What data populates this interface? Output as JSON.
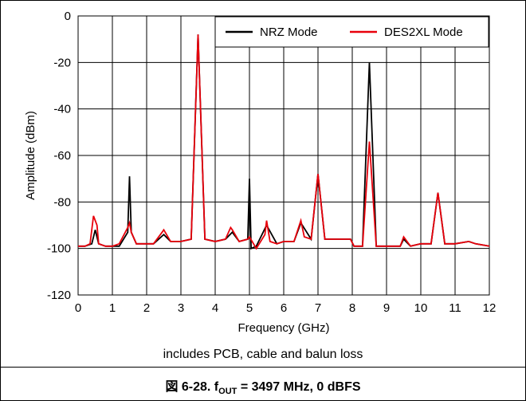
{
  "figure": {
    "note": "includes PCB, cable and balun loss",
    "caption": {
      "prefix": "図 6-28. f",
      "subscript": "OUT",
      "suffix": " = 3497 MHz, 0 dBFS"
    }
  },
  "chart_data": {
    "type": "line",
    "title": "",
    "xlabel": "Frequency (GHz)",
    "ylabel": "Amplitude (dBm)",
    "xlim": [
      0,
      12
    ],
    "ylim": [
      -120,
      0
    ],
    "xticks": [
      0,
      1,
      2,
      3,
      4,
      5,
      6,
      7,
      8,
      9,
      10,
      11,
      12
    ],
    "yticks": [
      0,
      -20,
      -40,
      -60,
      -80,
      -100,
      -120
    ],
    "grid": true,
    "legend_position": "top-right",
    "series": [
      {
        "name": "NRZ Mode",
        "color": "#000000",
        "x": [
          0.0,
          0.2,
          0.4,
          0.5,
          0.6,
          0.8,
          1.0,
          1.2,
          1.45,
          1.5,
          1.55,
          1.7,
          2.0,
          2.2,
          2.5,
          2.7,
          3.0,
          3.3,
          3.5,
          3.7,
          4.0,
          4.3,
          4.5,
          4.7,
          4.95,
          5.0,
          5.05,
          5.2,
          5.5,
          5.8,
          6.0,
          6.3,
          6.5,
          6.8,
          7.0,
          7.2,
          7.5,
          7.95,
          8.05,
          8.3,
          8.5,
          8.7,
          9.0,
          9.4,
          9.5,
          9.7,
          10.0,
          10.3,
          10.5,
          10.7,
          11.0,
          11.4,
          11.6,
          12.0
        ],
        "y": [
          -99,
          -99,
          -98,
          -92,
          -98,
          -99,
          -99,
          -99,
          -93,
          -69,
          -93,
          -98,
          -98,
          -98,
          -94,
          -97,
          -97,
          -96,
          -8,
          -96,
          -97,
          -96,
          -93,
          -97,
          -96,
          -70,
          -100,
          -99,
          -90,
          -98,
          -97,
          -97,
          -89,
          -96,
          -68,
          -96,
          -96,
          -96,
          -99,
          -99,
          -20,
          -99,
          -99,
          -99,
          -96,
          -99,
          -98,
          -98,
          -76,
          -98,
          -98,
          -97,
          -98,
          -99
        ]
      },
      {
        "name": "DES2XL Mode",
        "color": "#e8000b",
        "x": [
          0.0,
          0.2,
          0.35,
          0.45,
          0.55,
          0.6,
          0.8,
          1.0,
          1.2,
          1.45,
          1.5,
          1.55,
          1.7,
          2.0,
          2.2,
          2.45,
          2.5,
          2.7,
          3.0,
          3.3,
          3.5,
          3.7,
          4.0,
          4.3,
          4.45,
          4.5,
          4.7,
          4.95,
          5.0,
          5.2,
          5.45,
          5.5,
          5.6,
          5.8,
          6.0,
          6.3,
          6.5,
          6.6,
          6.8,
          7.0,
          7.2,
          7.5,
          7.95,
          8.05,
          8.3,
          8.5,
          8.7,
          9.0,
          9.4,
          9.5,
          9.7,
          10.0,
          10.3,
          10.5,
          10.7,
          11.0,
          11.4,
          11.6,
          12.0
        ],
        "y": [
          -99,
          -99,
          -98,
          -86,
          -90,
          -98,
          -99,
          -99,
          -98,
          -91,
          -89,
          -93,
          -98,
          -98,
          -98,
          -93,
          -92,
          -97,
          -97,
          -96,
          -8,
          -96,
          -97,
          -96,
          -91,
          -92,
          -97,
          -96,
          -95,
          -100,
          -94,
          -88,
          -97,
          -98,
          -97,
          -97,
          -88,
          -95,
          -96,
          -68,
          -96,
          -96,
          -96,
          -99,
          -99,
          -54,
          -99,
          -99,
          -99,
          -95,
          -99,
          -98,
          -98,
          -76,
          -98,
          -98,
          -97,
          -98,
          -99
        ]
      }
    ]
  }
}
